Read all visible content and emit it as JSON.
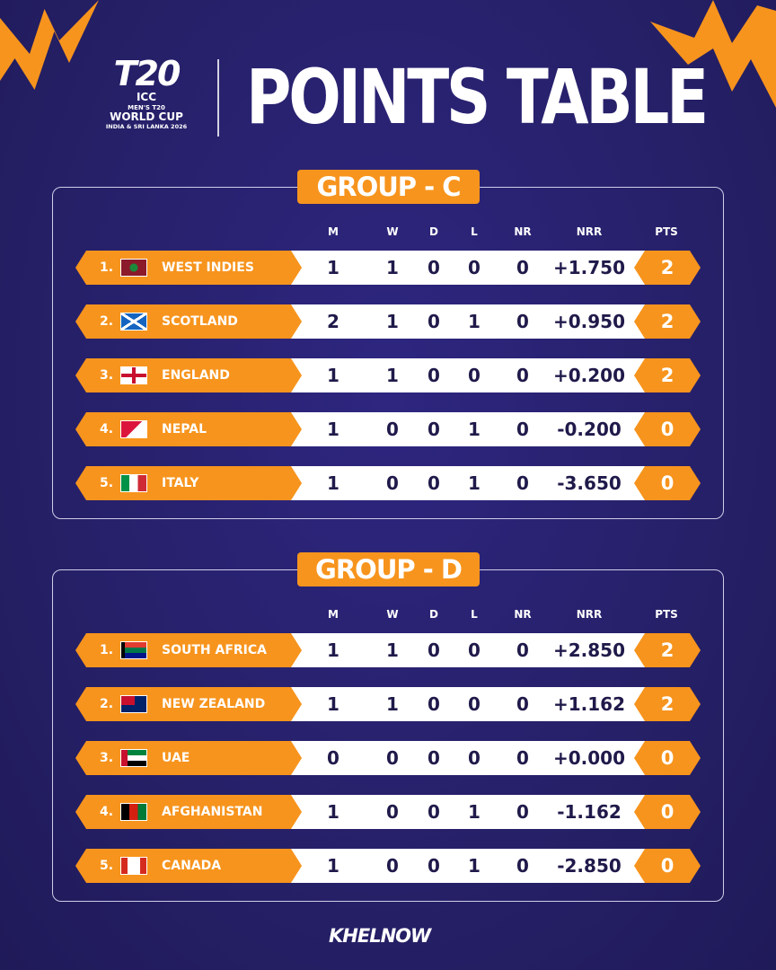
{
  "logo": {
    "t20": "T20",
    "icc": "ICC",
    "mens": "MEN'S T20",
    "event": "WORLD CUP",
    "host": "INDIA & SRI LANKA 2026"
  },
  "title": "POINTS TABLE",
  "columns": [
    "M",
    "W",
    "D",
    "L",
    "NR",
    "NRR",
    "PTS"
  ],
  "colors": {
    "accent": "#f7941d",
    "background": "#262068",
    "row": "#ffffff"
  },
  "groups": [
    {
      "title": "GROUP - C",
      "rows": [
        {
          "pos": "1.",
          "team": "WEST INDIES",
          "flag": "west-indies-flag",
          "m": "1",
          "w": "1",
          "d": "0",
          "l": "0",
          "nr": "0",
          "nrr": "+1.750",
          "pts": "2"
        },
        {
          "pos": "2.",
          "team": "SCOTLAND",
          "flag": "scotland-flag",
          "m": "2",
          "w": "1",
          "d": "0",
          "l": "1",
          "nr": "0",
          "nrr": "+0.950",
          "pts": "2"
        },
        {
          "pos": "3.",
          "team": "ENGLAND",
          "flag": "england-flag",
          "m": "1",
          "w": "1",
          "d": "0",
          "l": "0",
          "nr": "0",
          "nrr": "+0.200",
          "pts": "2"
        },
        {
          "pos": "4.",
          "team": "NEPAL",
          "flag": "nepal-flag",
          "m": "1",
          "w": "0",
          "d": "0",
          "l": "1",
          "nr": "0",
          "nrr": "-0.200",
          "pts": "0"
        },
        {
          "pos": "5.",
          "team": "ITALY",
          "flag": "italy-flag",
          "m": "1",
          "w": "0",
          "d": "0",
          "l": "1",
          "nr": "0",
          "nrr": "-3.650",
          "pts": "0"
        }
      ]
    },
    {
      "title": "GROUP - D",
      "rows": [
        {
          "pos": "1.",
          "team": "SOUTH AFRICA",
          "flag": "south-africa-flag",
          "m": "1",
          "w": "1",
          "d": "0",
          "l": "0",
          "nr": "0",
          "nrr": "+2.850",
          "pts": "2"
        },
        {
          "pos": "2.",
          "team": "NEW ZEALAND",
          "flag": "new-zealand-flag",
          "m": "1",
          "w": "1",
          "d": "0",
          "l": "0",
          "nr": "0",
          "nrr": "+1.162",
          "pts": "2"
        },
        {
          "pos": "3.",
          "team": "UAE",
          "flag": "uae-flag",
          "m": "0",
          "w": "0",
          "d": "0",
          "l": "0",
          "nr": "0",
          "nrr": "+0.000",
          "pts": "0"
        },
        {
          "pos": "4.",
          "team": "AFGHANISTAN",
          "flag": "afghanistan-flag",
          "m": "1",
          "w": "0",
          "d": "0",
          "l": "1",
          "nr": "0",
          "nrr": "-1.162",
          "pts": "0"
        },
        {
          "pos": "5.",
          "team": "CANADA",
          "flag": "canada-flag",
          "m": "1",
          "w": "0",
          "d": "0",
          "l": "1",
          "nr": "0",
          "nrr": "-2.850",
          "pts": "0"
        }
      ]
    }
  ],
  "brand": "KHELNOW"
}
